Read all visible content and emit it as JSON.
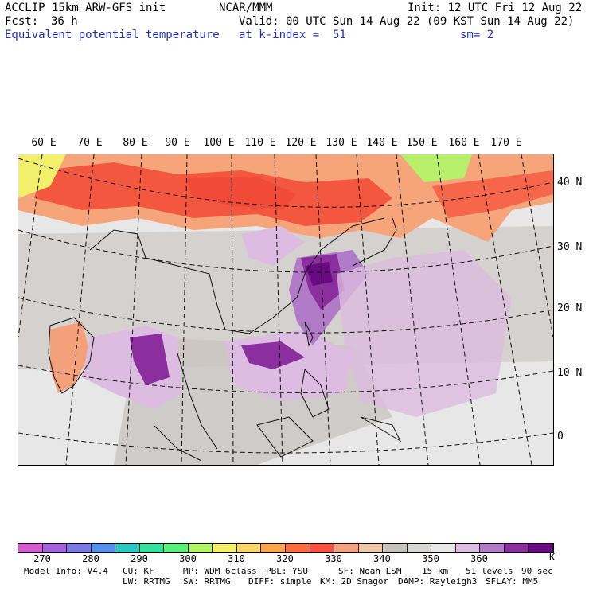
{
  "header": {
    "model": "ACCLIP 15km ARW-GFS init",
    "org": "NCAR/MMM",
    "init": "Init: 12 UTC Fri 12 Aug 22",
    "fcst_label": "Fcst:",
    "fcst_value": "36 h",
    "valid": "Valid: 00 UTC Sun 14 Aug 22 (09 KST Sun 14 Aug 22)",
    "field": "Equivalent potential temperature",
    "level": "at k-index =  51",
    "smooth": "sm= 2"
  },
  "map": {
    "lon_labels": [
      "60 E",
      "70 E",
      "80 E",
      "90 E",
      "100 E",
      "110 E",
      "120 E",
      "130 E",
      "140 E",
      "150 E",
      "160 E",
      "170 E"
    ],
    "lat_labels": [
      "40 N",
      "30 N",
      "20 N",
      "10 N",
      "0"
    ]
  },
  "colorbar": {
    "unit": "K",
    "ticks": [
      "270",
      "280",
      "290",
      "300",
      "310",
      "320",
      "330",
      "340",
      "350",
      "360"
    ],
    "colors": [
      "#d45ad2",
      "#a463dd",
      "#7c78e4",
      "#5690ec",
      "#2fc7c4",
      "#35e0a0",
      "#5cee7a",
      "#b2f466",
      "#f2f06a",
      "#f9d56a",
      "#fba64f",
      "#f96e3f",
      "#f5533f",
      "#f4a180",
      "#eec6a8",
      "#c8c2bd",
      "#d9d7d5",
      "#e9e9e9",
      "#dcbfe0",
      "#b27bc8",
      "#8b2f9e",
      "#6a0a82"
    ]
  },
  "footer": {
    "line1": [
      {
        "label": "Model Info: V4.4"
      },
      {
        "label": "CU: KF"
      },
      {
        "label": "MP: WDM 6class"
      },
      {
        "label": "PBL: YSU"
      },
      {
        "label": "SF: Noah LSM"
      },
      {
        "label": "15 km"
      },
      {
        "label": "51 levels"
      },
      {
        "label": "90 sec"
      }
    ],
    "line2": [
      {
        "label": "LW: RRTMG"
      },
      {
        "label": "SW: RRTMG"
      },
      {
        "label": "DIFF: simple"
      },
      {
        "label": "KM: 2D Smagor"
      },
      {
        "label": "DAMP: Rayleigh3"
      },
      {
        "label": "SFLAY: MM5"
      }
    ]
  }
}
